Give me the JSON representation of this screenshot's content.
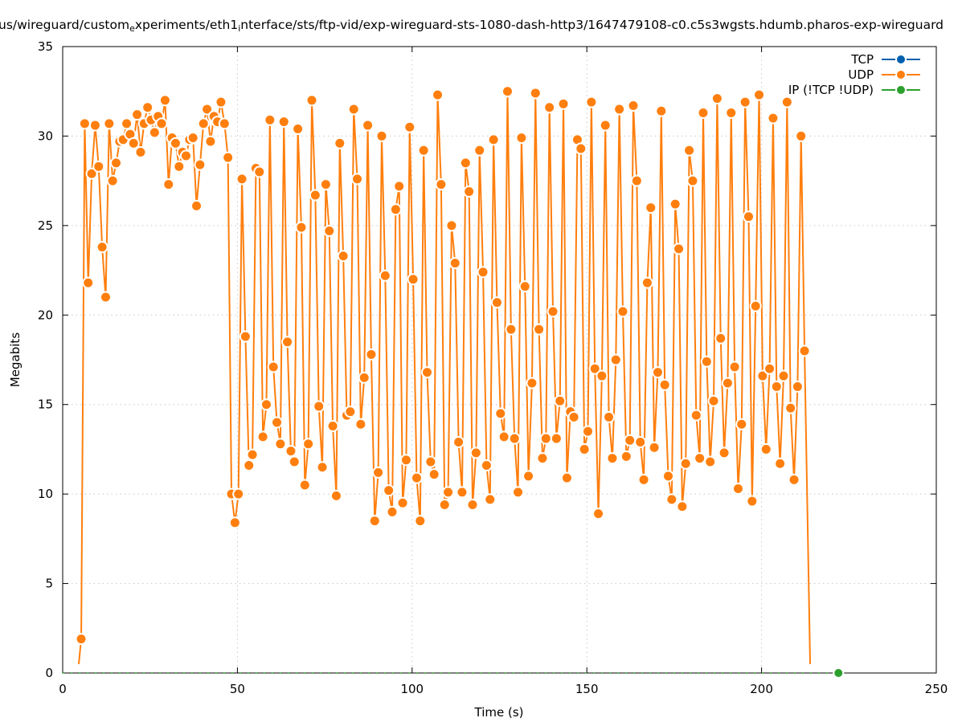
{
  "chart_data": {
    "type": "line",
    "title_parts": [
      {
        "text": "us/wireguard/custom",
        "sub": false
      },
      {
        "text": "e",
        "sub": true
      },
      {
        "text": "xperiments/eth1",
        "sub": false
      },
      {
        "text": "i",
        "sub": true
      },
      {
        "text": "nterface/sts/ftp-vid/exp-wireguard-sts-1080-dash-http3/1647479108-c0.c5s3wgsts.hdumb.pharos-exp-wireguard",
        "sub": false
      }
    ],
    "xlabel": "Time (s)",
    "ylabel": "Megabits",
    "xlim": [
      0,
      250
    ],
    "ylim": [
      0,
      35
    ],
    "xticks": [
      "0",
      "50",
      "100",
      "150",
      "200",
      "250"
    ],
    "yticks": [
      "0",
      "5",
      "10",
      "15",
      "20",
      "25",
      "30",
      "35"
    ],
    "grid": true,
    "legend_position": "top-right",
    "series": [
      {
        "name": "TCP",
        "color": "#0060ad",
        "x_start": null,
        "values": []
      },
      {
        "name": "UDP",
        "color": "#ff7f0e",
        "leading_point": [
          4.6,
          0.5
        ],
        "trailing_point": [
          213.9,
          0.5
        ],
        "x_start": 5.3,
        "x_step": 1.0,
        "values": [
          1.9,
          30.7,
          21.8,
          27.9,
          30.6,
          28.3,
          23.8,
          21.0,
          30.7,
          27.5,
          28.5,
          29.7,
          29.8,
          30.7,
          30.1,
          29.6,
          31.2,
          29.1,
          30.7,
          31.6,
          30.9,
          30.2,
          31.1,
          30.7,
          32.0,
          27.3,
          29.9,
          29.6,
          28.3,
          29.1,
          28.9,
          29.8,
          29.9,
          26.1,
          28.4,
          30.7,
          31.5,
          29.7,
          31.1,
          30.8,
          31.9,
          30.7,
          28.8,
          10.0,
          8.4,
          10.0,
          27.6,
          18.8,
          11.6,
          12.2,
          28.2,
          28.0,
          13.2,
          15.0,
          30.9,
          17.1,
          14.0,
          12.8,
          30.8,
          18.5,
          12.4,
          11.8,
          30.4,
          24.9,
          10.5,
          12.8,
          32.0,
          26.7,
          14.9,
          11.5,
          27.3,
          24.7,
          13.8,
          9.9,
          29.6,
          23.3,
          14.4,
          14.6,
          31.5,
          27.6,
          13.9,
          16.5,
          30.6,
          17.8,
          8.5,
          11.2,
          30.0,
          22.2,
          10.2,
          9.0,
          25.9,
          27.2,
          9.5,
          11.9,
          30.5,
          22.0,
          10.9,
          8.5,
          29.2,
          16.8,
          11.8,
          11.1,
          32.3,
          27.3,
          9.4,
          10.1,
          25.0,
          22.9,
          12.9,
          10.1,
          28.5,
          26.9,
          9.4,
          12.3,
          29.2,
          22.4,
          11.6,
          9.7,
          29.8,
          20.7,
          14.5,
          13.2,
          32.5,
          19.2,
          13.1,
          10.1,
          29.9,
          21.6,
          11.0,
          16.2,
          32.4,
          19.2,
          12.0,
          13.1,
          31.6,
          20.2,
          13.1,
          15.2,
          31.8,
          10.9,
          14.6,
          14.3,
          29.8,
          29.3,
          12.5,
          13.5,
          31.9,
          17.0,
          8.9,
          16.6,
          30.6,
          14.3,
          12.0,
          17.5,
          31.5,
          20.2,
          12.1,
          13.0,
          31.7,
          27.5,
          12.9,
          10.8,
          21.8,
          26.0,
          12.6,
          16.8,
          31.4,
          16.1,
          11.0,
          9.7,
          26.2,
          23.7,
          9.3,
          11.7,
          29.2,
          27.5,
          14.4,
          12.0,
          31.3,
          17.4,
          11.8,
          15.2,
          32.1,
          18.7,
          12.3,
          16.2,
          31.3,
          17.1,
          10.3,
          13.9,
          31.9,
          25.5,
          9.6,
          20.5,
          32.3,
          16.6,
          12.5,
          17.0,
          31.0,
          16.0,
          11.7,
          16.6,
          31.9,
          14.8,
          10.8,
          16.0,
          30.0,
          18.0
        ]
      },
      {
        "name": "IP (!TCP  !UDP)",
        "color": "#2ca02c",
        "line_range": [
          0,
          222
        ],
        "points": [
          [
            222,
            0
          ]
        ]
      }
    ]
  }
}
